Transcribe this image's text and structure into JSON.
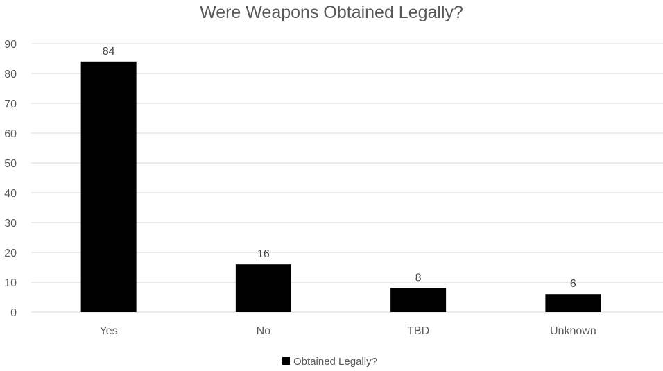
{
  "chart_data": {
    "type": "bar",
    "title": "Were Weapons Obtained Legally?",
    "categories": [
      "Yes",
      "No",
      "TBD",
      "Unknown"
    ],
    "series": [
      {
        "name": "Obtained Legally?",
        "values": [
          84,
          16,
          8,
          6
        ],
        "color": "#000000"
      }
    ],
    "xlabel": "",
    "ylabel": "",
    "ylim": [
      0,
      90
    ],
    "yticks": [
      0,
      10,
      20,
      30,
      40,
      50,
      60,
      70,
      80,
      90
    ],
    "data_labels": true,
    "grid": true,
    "legend": "bottom"
  }
}
